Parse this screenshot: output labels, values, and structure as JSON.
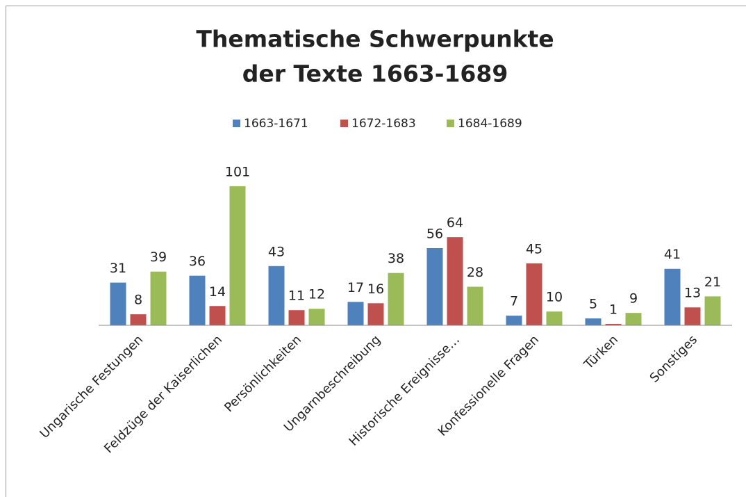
{
  "chart_data": {
    "type": "bar",
    "title": [
      "Thematische Schwerpunkte",
      "der Texte 1663-1689"
    ],
    "categories": [
      "Ungarische Festungen",
      "Feldzüge der Kaiserlichen",
      "Persönlichkeiten",
      "Ungarnbeschreibung",
      "Historische Ereignisse…",
      "Konfessionelle Fragen",
      "Türken",
      "Sonstiges"
    ],
    "series": [
      {
        "name": "1663-1671",
        "color": "#4f81bd",
        "values": [
          31,
          36,
          43,
          17,
          56,
          7,
          5,
          41
        ]
      },
      {
        "name": "1672-1683",
        "color": "#c0504d",
        "values": [
          8,
          14,
          11,
          16,
          64,
          45,
          1,
          13
        ]
      },
      {
        "name": "1684-1689",
        "color": "#9bbb59",
        "values": [
          39,
          101,
          12,
          38,
          28,
          10,
          9,
          21
        ]
      }
    ],
    "ylim": [
      0,
      110
    ],
    "legend": "top"
  }
}
